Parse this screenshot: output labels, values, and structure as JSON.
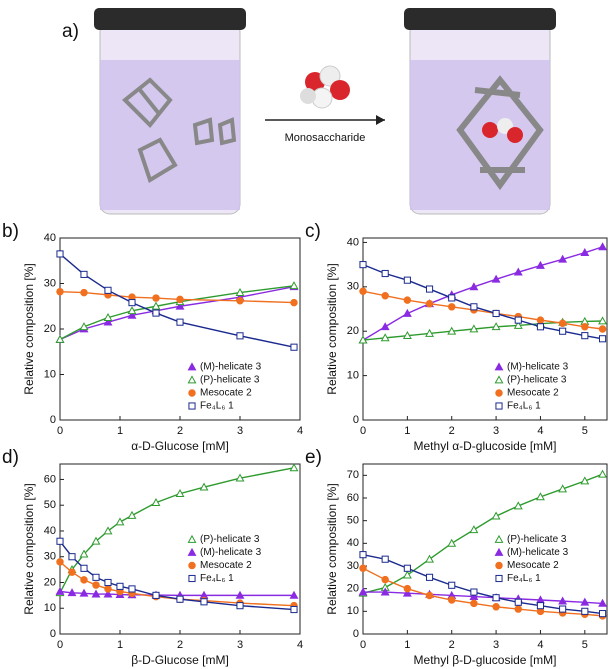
{
  "scheme": {
    "label": "a)",
    "arrow_label": "Monosaccharide"
  },
  "chart_data": [
    {
      "type": "scatter",
      "label": "b)",
      "xlabel": "α-D-Glucose [mM]",
      "ylabel": "Relative composition [%]",
      "xlim": [
        0,
        4
      ],
      "xticks": [
        0,
        1,
        2,
        3,
        4
      ],
      "ylim": [
        0,
        40
      ],
      "yticks": [
        0,
        10,
        20,
        30,
        40
      ],
      "legend": "lower right",
      "fit": true,
      "x": [
        0,
        0.4,
        0.8,
        1.2,
        1.6,
        2.0,
        3.0,
        3.9
      ],
      "series": [
        {
          "name": "(M)-helicate 3",
          "color": "#8a2be2",
          "marker": "triangle",
          "values": [
            17.7,
            20,
            21.5,
            23,
            24,
            25,
            27,
            29.3
          ]
        },
        {
          "name": "(P)-helicate 3",
          "color": "#2e9b2e",
          "marker": "triangle-open",
          "values": [
            17.7,
            20.5,
            22.5,
            24,
            25,
            26,
            28,
            29.5
          ]
        },
        {
          "name": "Mesocate 2",
          "color": "#f07020",
          "marker": "circle",
          "values": [
            28.2,
            28,
            27.5,
            27,
            26.8,
            26.5,
            26.2,
            25.8
          ]
        },
        {
          "name": "Fe₄L₆ 1",
          "color": "#1a2a8e",
          "marker": "square-open",
          "values": [
            36.5,
            32,
            28.5,
            25.8,
            23.5,
            21.5,
            18.5,
            16
          ]
        }
      ]
    },
    {
      "type": "scatter",
      "label": "c)",
      "xlabel": "Methyl α-D-glucoside [mM]",
      "ylabel": "Relative composition [%]",
      "xlim": [
        0,
        5.5
      ],
      "xticks": [
        0,
        1,
        2,
        3,
        4,
        5
      ],
      "ylim": [
        0,
        41
      ],
      "yticks": [
        0,
        10,
        20,
        30,
        40
      ],
      "legend": "lower right",
      "fit": true,
      "x": [
        0,
        0.5,
        1,
        1.5,
        2,
        2.5,
        3,
        3.5,
        4,
        4.5,
        5,
        5.4
      ],
      "series": [
        {
          "name": "(M)-helicate 3",
          "color": "#8a2be2",
          "marker": "triangle",
          "values": [
            18,
            21,
            24,
            26.2,
            28.2,
            30,
            31.7,
            33.3,
            34.8,
            36.2,
            37.7,
            39
          ]
        },
        {
          "name": "(P)-helicate 3",
          "color": "#2e9b2e",
          "marker": "triangle-open",
          "values": [
            18,
            18.5,
            19,
            19.5,
            20,
            20.5,
            21,
            21.3,
            21.7,
            22,
            22.2,
            22.3
          ]
        },
        {
          "name": "Mesocate 2",
          "color": "#f07020",
          "marker": "circle",
          "values": [
            29,
            28,
            27,
            26.2,
            25.5,
            24.8,
            24,
            23.3,
            22.5,
            21.8,
            21,
            20.5
          ]
        },
        {
          "name": "Fe₄L₆ 1",
          "color": "#1a2a8e",
          "marker": "square-open",
          "values": [
            35,
            33,
            31.5,
            29.5,
            27.5,
            25.5,
            24,
            22.5,
            21,
            20,
            19,
            18.3
          ]
        }
      ]
    },
    {
      "type": "scatter",
      "label": "d)",
      "xlabel": "β-D-Glucose [mM]",
      "ylabel": "Relative composition [%]",
      "xlim": [
        0,
        4
      ],
      "xticks": [
        0,
        1,
        2,
        3,
        4
      ],
      "ylim": [
        0,
        66
      ],
      "yticks": [
        0,
        10,
        20,
        30,
        40,
        50,
        60
      ],
      "legend": "center right",
      "fit": true,
      "x": [
        0,
        0.2,
        0.4,
        0.6,
        0.8,
        1.0,
        1.2,
        1.6,
        2.0,
        2.4,
        3.0,
        3.9
      ],
      "series": [
        {
          "name": "(P)-helicate 3",
          "color": "#2e9b2e",
          "marker": "triangle-open",
          "values": [
            16,
            25,
            31,
            36,
            40,
            43.5,
            46,
            51,
            54.5,
            57,
            60.5,
            64.5
          ]
        },
        {
          "name": "(M)-helicate 3",
          "color": "#8a2be2",
          "marker": "triangle",
          "values": [
            16.5,
            16,
            15.8,
            15.5,
            15.5,
            15.3,
            15.2,
            15.1,
            15,
            15,
            15,
            15
          ]
        },
        {
          "name": "Mesocate 2",
          "color": "#f07020",
          "marker": "circle",
          "values": [
            28,
            24,
            21,
            19,
            17.5,
            16.5,
            15.8,
            14.5,
            13.5,
            13,
            12,
            11
          ]
        },
        {
          "name": "Fe₄L₆ 1",
          "color": "#1a2a8e",
          "marker": "square-open",
          "values": [
            36,
            30,
            25.5,
            22,
            20,
            18.5,
            17.5,
            15,
            13.5,
            12.5,
            11,
            9.5
          ]
        }
      ]
    },
    {
      "type": "scatter",
      "label": "e)",
      "xlabel": "Methyl β-D-glucoside [mM]",
      "ylabel": "Relative composition [%]",
      "xlim": [
        0,
        5.5
      ],
      "xticks": [
        0,
        1,
        2,
        3,
        4,
        5
      ],
      "ylim": [
        0,
        75
      ],
      "yticks": [
        0,
        10,
        20,
        30,
        40,
        50,
        60,
        70
      ],
      "legend": "center right",
      "fit": true,
      "x": [
        0,
        0.5,
        1,
        1.5,
        2,
        2.5,
        3,
        3.5,
        4,
        4.5,
        5,
        5.4
      ],
      "series": [
        {
          "name": "(P)-helicate 3",
          "color": "#2e9b2e",
          "marker": "triangle-open",
          "values": [
            18,
            20.5,
            26,
            33,
            40,
            46,
            52,
            56.5,
            60.5,
            64,
            67.5,
            70.5
          ]
        },
        {
          "name": "(M)-helicate 3",
          "color": "#8a2be2",
          "marker": "triangle",
          "values": [
            18.5,
            18.5,
            18,
            17.5,
            17,
            16.5,
            16,
            15.5,
            15,
            14.5,
            14,
            13.5
          ]
        },
        {
          "name": "Mesocate 2",
          "color": "#f07020",
          "marker": "circle",
          "values": [
            29,
            24,
            20,
            17,
            15,
            13.5,
            12,
            11,
            10,
            9.3,
            8.7,
            8
          ]
        },
        {
          "name": "Fe₄L₆ 1",
          "color": "#1a2a8e",
          "marker": "square-open",
          "values": [
            35,
            33,
            29,
            25,
            21.5,
            18.5,
            16,
            14,
            12.5,
            11,
            10,
            9
          ]
        }
      ]
    }
  ]
}
